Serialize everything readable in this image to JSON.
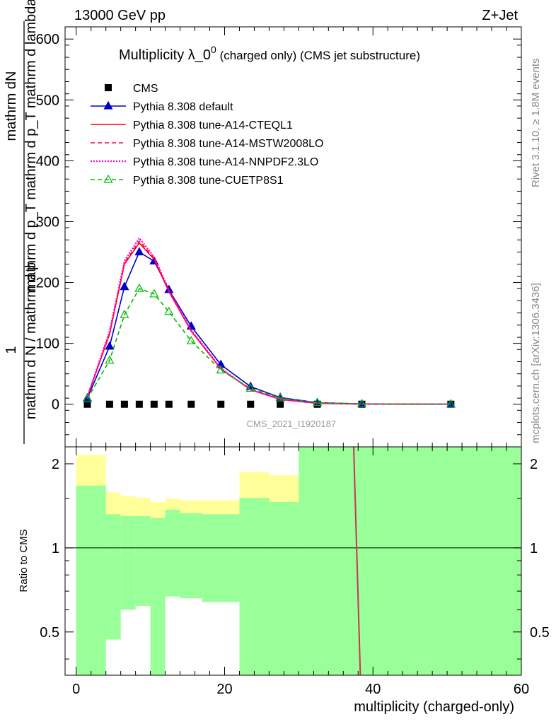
{
  "header": {
    "left": "13000 GeV pp",
    "right": "Z+Jet"
  },
  "side_labels": {
    "rivet": "Rivet 3.1.10, ≥ 1.8M events",
    "mcplots": "mcplots.cern.ch [arXiv:1306.3436]"
  },
  "chart_data": [
    {
      "type": "line",
      "title": "Multiplicity λ_0⁰ (charged only) (CMS jet substructure)",
      "title_main": "Multiplicity λ_0",
      "title_sup": "0",
      "title_rest": " (charged only) (CMS jet substructure)",
      "ylabel_numerator": "mathrm dN",
      "ylabel_denominator": "mathrm d p_T mathrm d p_T mathrm d lambda",
      "ylabel_prefix_1": "1",
      "ylabel_prefix_2": "mathrm d N / mathrm d p",
      "watermark": "CMS_2021_I1920187",
      "ylim": [
        -70,
        620
      ],
      "xlim": [
        -1.5,
        60
      ],
      "yticks": [
        "0",
        "100",
        "200",
        "300",
        "400",
        "500",
        "600"
      ],
      "legend_position": "top-left",
      "series": [
        {
          "name": "CMS",
          "color": "#000000",
          "marker": "square",
          "x": [
            1.5,
            4.5,
            6.5,
            8.5,
            10.5,
            12.5,
            15.5,
            19.5,
            23.5,
            27.5,
            32.5,
            38.5,
            50.5
          ],
          "y": [
            0,
            0,
            0,
            0,
            0,
            0,
            0,
            0,
            0,
            0,
            0,
            0,
            0
          ]
        },
        {
          "name": "Pythia 8.308 default",
          "color": "#0000cc",
          "marker": "triangle",
          "style": "solid",
          "x": [
            1.5,
            4.5,
            6.5,
            8.5,
            10.5,
            12.5,
            15.5,
            19.5,
            23.5,
            27.5,
            32.5,
            38.5,
            50.5
          ],
          "y": [
            10,
            95,
            193,
            250,
            235,
            188,
            128,
            65,
            29,
            11,
            2.5,
            0.5,
            0.05
          ]
        },
        {
          "name": "Pythia 8.308 tune-A14-CTEQL1",
          "color": "#ff0000",
          "style": "solid",
          "x": [
            1.5,
            4.5,
            6.5,
            8.5,
            10.5,
            12.5,
            15.5,
            19.5,
            23.5,
            27.5,
            32.5,
            38.5,
            50.5
          ],
          "y": [
            12,
            115,
            230,
            265,
            238,
            185,
            120,
            58,
            24,
            8,
            1.5,
            0.3,
            0.02
          ]
        },
        {
          "name": "Pythia 8.308 tune-A14-MSTW2008LO",
          "color": "#ff0066",
          "style": "dashed",
          "x": [
            1.5,
            4.5,
            6.5,
            8.5,
            10.5,
            12.5,
            15.5,
            19.5,
            23.5,
            27.5,
            32.5,
            38.5,
            50.5
          ],
          "y": [
            12,
            117,
            232,
            268,
            240,
            186,
            121,
            58,
            24,
            8,
            1.5,
            0.3,
            0.02
          ]
        },
        {
          "name": "Pythia 8.308 tune-A14-NNPDF2.3LO",
          "color": "#ff00cc",
          "style": "dotted",
          "x": [
            1.5,
            4.5,
            6.5,
            8.5,
            10.5,
            12.5,
            15.5,
            19.5,
            23.5,
            27.5,
            32.5,
            38.5,
            50.5
          ],
          "y": [
            12,
            120,
            235,
            273,
            242,
            188,
            122,
            59,
            24,
            8,
            1.5,
            0.3,
            0.02
          ]
        },
        {
          "name": "Pythia 8.308 tune-CUETP8S1",
          "color": "#00bb00",
          "marker": "open-triangle",
          "style": "dashed",
          "x": [
            1.5,
            4.5,
            6.5,
            8.5,
            10.5,
            12.5,
            15.5,
            19.5,
            23.5,
            27.5,
            32.5,
            38.5,
            50.5
          ],
          "y": [
            9,
            72,
            147,
            190,
            181,
            152,
            104,
            56,
            26,
            10,
            2.5,
            0.5,
            0.05
          ]
        }
      ]
    },
    {
      "type": "area",
      "ylabel": "Ratio to CMS",
      "xlabel": "multiplicity (charged-only)",
      "xlim": [
        -1.5,
        60
      ],
      "ylim": [
        0.35,
        2.3
      ],
      "xticks": [
        "0",
        "20",
        "40",
        "60"
      ],
      "yticks": [
        "0.5",
        "1",
        "2"
      ],
      "bins": [
        {
          "x0": 0,
          "x1": 4,
          "green": [
            0.35,
            1.67
          ],
          "yellow": [
            0.35,
            2.15
          ]
        },
        {
          "x0": 4,
          "x1": 6,
          "green": [
            0.47,
            1.32
          ],
          "yellow": [
            0.78,
            1.58
          ]
        },
        {
          "x0": 6,
          "x1": 8,
          "green": [
            0.6,
            1.3
          ],
          "yellow": [
            0.82,
            1.53
          ]
        },
        {
          "x0": 8,
          "x1": 10,
          "green": [
            0.62,
            1.3
          ],
          "yellow": [
            0.84,
            1.51
          ]
        },
        {
          "x0": 10,
          "x1": 12,
          "green": [
            0.35,
            1.28
          ],
          "yellow": [
            0.35,
            1.46
          ]
        },
        {
          "x0": 12,
          "x1": 14,
          "green": [
            0.67,
            1.37
          ],
          "yellow": [
            0.88,
            1.5
          ]
        },
        {
          "x0": 14,
          "x1": 17,
          "green": [
            0.66,
            1.33
          ],
          "yellow": [
            0.86,
            1.48
          ]
        },
        {
          "x0": 17,
          "x1": 22,
          "green": [
            0.64,
            1.32
          ],
          "yellow": [
            0.82,
            1.48
          ]
        },
        {
          "x0": 22,
          "x1": 26,
          "green": [
            0.35,
            1.51
          ],
          "yellow": [
            0.35,
            1.87
          ]
        },
        {
          "x0": 26,
          "x1": 30,
          "green": [
            0.35,
            1.46
          ],
          "yellow": [
            0.35,
            1.82
          ]
        },
        {
          "x0": 30,
          "x1": 60,
          "green": [
            0.35,
            2.3
          ],
          "yellow": [
            0.35,
            2.3
          ]
        }
      ],
      "ratio_line": {
        "x": [
          37.4,
          38.3
        ],
        "y": [
          2.3,
          0.35
        ],
        "color": "#cc3355"
      }
    }
  ]
}
